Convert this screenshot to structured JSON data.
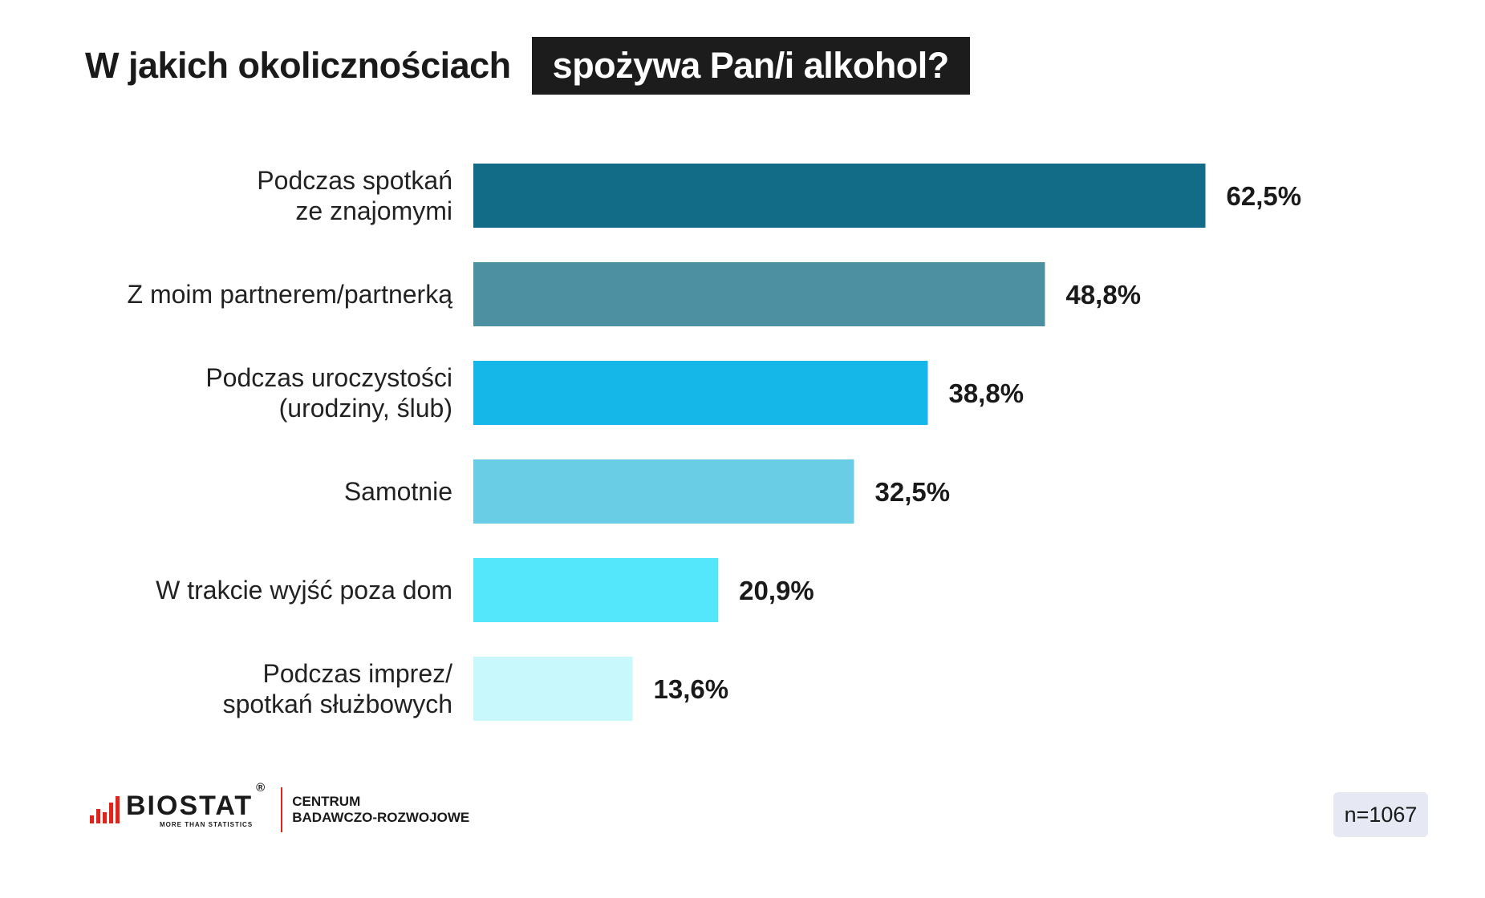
{
  "title": {
    "part1": "W jakich okolicznościach",
    "part2": "spożywa Pan/i alkohol?"
  },
  "chart_data": {
    "type": "bar",
    "orientation": "horizontal",
    "categories": [
      [
        "Podczas spotkań",
        "ze znajomymi"
      ],
      [
        "Z moim partnerem/partnerką"
      ],
      [
        "Podczas uroczystości",
        "(urodziny, ślub)"
      ],
      [
        "Samotnie"
      ],
      [
        "W trakcie wyjść poza dom"
      ],
      [
        "Podczas imprez/",
        "spotkań służbowych"
      ]
    ],
    "values": [
      62.5,
      48.8,
      38.8,
      32.5,
      20.9,
      13.6
    ],
    "value_labels": [
      "62,5%",
      "48,8%",
      "38,8%",
      "32,5%",
      "20,9%",
      "13,6%"
    ],
    "colors": [
      "#126b87",
      "#4c90a1",
      "#15b6e8",
      "#6acde6",
      "#54e6fb",
      "#c8f8fc"
    ],
    "xlim": [
      0,
      100
    ],
    "grid": false,
    "legend": "none",
    "title": "W jakich okolicznościach spożywa Pan/i alkohol?"
  },
  "footer": {
    "brand": "BIOSTAT",
    "registered": "®",
    "tagline": "MORE THAN STATISTICS",
    "centre_line1": "CENTRUM",
    "centre_line2": "BADAWCZO-ROZWOJOWE",
    "sample_size": "n=1067",
    "brand_color": "#e2231a"
  }
}
